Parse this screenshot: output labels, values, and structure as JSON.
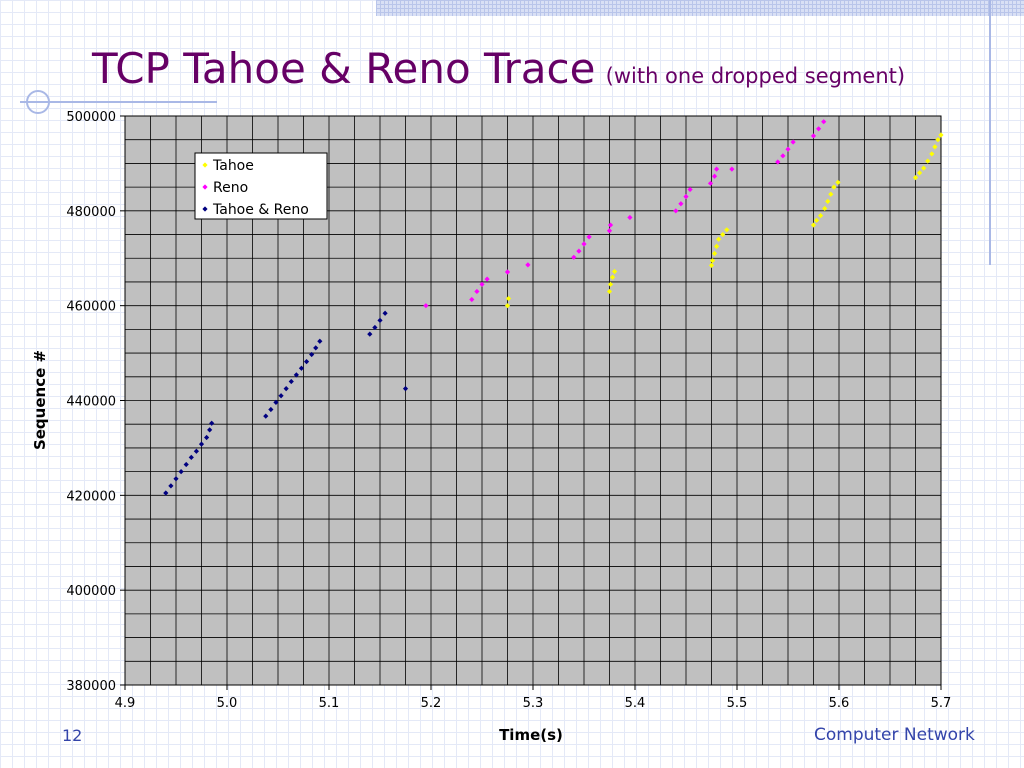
{
  "slide": {
    "title": "TCP Tahoe & Reno Trace",
    "subtitle": "(with one dropped segment)",
    "slide_number": "12",
    "footer": "Computer Network"
  },
  "colors": {
    "title": "#660066",
    "footer": "#3344aa",
    "plot_background": "#c0c0c0",
    "gridline": "#000000"
  },
  "chart_data": {
    "type": "scatter",
    "xlabel": "Time(s)",
    "ylabel": "Sequence #",
    "xlim": [
      4.9,
      5.7
    ],
    "ylim": [
      380000,
      500000
    ],
    "x_ticks": [
      "4.9",
      "5.0",
      "5.1",
      "5.2",
      "5.3",
      "5.4",
      "5.5",
      "5.6",
      "5.7"
    ],
    "y_ticks": [
      "380000",
      "400000",
      "420000",
      "440000",
      "460000",
      "480000",
      "500000"
    ],
    "grid": true,
    "legend_position": "top-left",
    "series": [
      {
        "name": "Tahoe",
        "color": "#ffff00",
        "points": [
          [
            5.275,
            460000
          ],
          [
            5.276,
            461500
          ],
          [
            5.375,
            463000
          ],
          [
            5.376,
            464500
          ],
          [
            5.378,
            466000
          ],
          [
            5.38,
            467200
          ],
          [
            5.475,
            468500
          ],
          [
            5.476,
            469500
          ],
          [
            5.478,
            471000
          ],
          [
            5.48,
            472500
          ],
          [
            5.482,
            474000
          ],
          [
            5.486,
            475000
          ],
          [
            5.49,
            476000
          ],
          [
            5.575,
            477000
          ],
          [
            5.578,
            478000
          ],
          [
            5.582,
            479000
          ],
          [
            5.586,
            480500
          ],
          [
            5.589,
            482000
          ],
          [
            5.592,
            483500
          ],
          [
            5.595,
            485000
          ],
          [
            5.599,
            486000
          ],
          [
            5.675,
            487000
          ],
          [
            5.679,
            488000
          ],
          [
            5.683,
            489000
          ],
          [
            5.687,
            490500
          ],
          [
            5.691,
            492000
          ],
          [
            5.694,
            493500
          ],
          [
            5.697,
            495000
          ],
          [
            5.7,
            496000
          ]
        ]
      },
      {
        "name": "Reno",
        "color": "#ff00ff",
        "points": [
          [
            5.195,
            460000
          ],
          [
            5.24,
            461300
          ],
          [
            5.245,
            463000
          ],
          [
            5.25,
            464500
          ],
          [
            5.255,
            465600
          ],
          [
            5.275,
            467100
          ],
          [
            5.295,
            468600
          ],
          [
            5.34,
            470200
          ],
          [
            5.345,
            471500
          ],
          [
            5.35,
            473000
          ],
          [
            5.355,
            474500
          ],
          [
            5.375,
            475800
          ],
          [
            5.376,
            477000
          ],
          [
            5.395,
            478600
          ],
          [
            5.44,
            480000
          ],
          [
            5.445,
            481500
          ],
          [
            5.45,
            483000
          ],
          [
            5.454,
            484500
          ],
          [
            5.474,
            485800
          ],
          [
            5.478,
            487300
          ],
          [
            5.48,
            488800
          ],
          [
            5.495,
            488800
          ],
          [
            5.54,
            490300
          ],
          [
            5.545,
            491600
          ],
          [
            5.55,
            493000
          ],
          [
            5.555,
            494500
          ],
          [
            5.575,
            495800
          ],
          [
            5.58,
            497300
          ],
          [
            5.585,
            498800
          ]
        ]
      },
      {
        "name": "Tahoe & Reno",
        "color": "#000080",
        "points": [
          [
            4.94,
            420500
          ],
          [
            4.945,
            422000
          ],
          [
            4.95,
            423500
          ],
          [
            4.955,
            425000
          ],
          [
            4.96,
            426500
          ],
          [
            4.965,
            428000
          ],
          [
            4.97,
            429300
          ],
          [
            4.975,
            430800
          ],
          [
            4.98,
            432200
          ],
          [
            4.983,
            433800
          ],
          [
            4.985,
            435200
          ],
          [
            5.038,
            436700
          ],
          [
            5.043,
            438100
          ],
          [
            5.048,
            439600
          ],
          [
            5.053,
            441000
          ],
          [
            5.058,
            442500
          ],
          [
            5.063,
            444000
          ],
          [
            5.068,
            445400
          ],
          [
            5.073,
            446800
          ],
          [
            5.078,
            448200
          ],
          [
            5.083,
            449700
          ],
          [
            5.087,
            451100
          ],
          [
            5.091,
            452500
          ],
          [
            5.14,
            454000
          ],
          [
            5.145,
            455400
          ],
          [
            5.15,
            456900
          ],
          [
            5.155,
            458400
          ],
          [
            5.175,
            442500
          ]
        ]
      }
    ]
  }
}
